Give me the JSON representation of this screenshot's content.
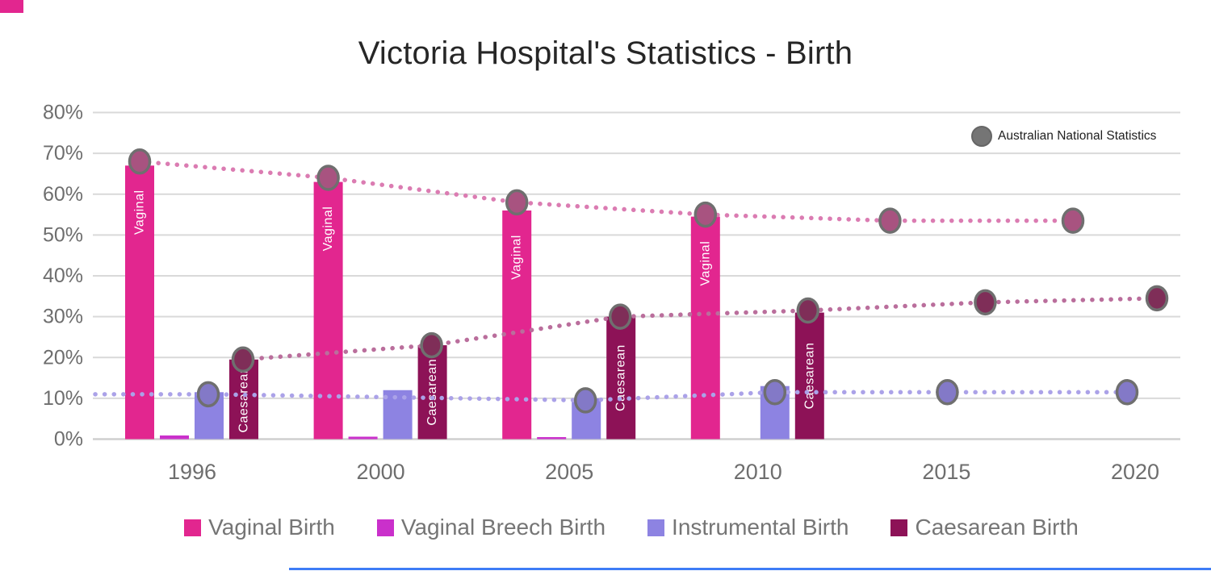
{
  "title": "Victoria Hospital's Statistics - Birth",
  "decorations": {
    "corner_swatch_color": "#E2268F",
    "bottom_accent_color": "#3E7CF6"
  },
  "chart_data": {
    "type": "bar",
    "subtype": "grouped-bars-with-national-scatter-trendlines",
    "title": "Victoria Hospital's Statistics - Birth",
    "xlabel": "",
    "ylabel": "",
    "ylim": [
      0,
      80
    ],
    "ytick_step": 10,
    "ytick_labels": [
      "0%",
      "10%",
      "20%",
      "30%",
      "40%",
      "50%",
      "60%",
      "70%",
      "80%"
    ],
    "grid": true,
    "legend_position": "bottom",
    "categories": [
      "1996",
      "2000",
      "2005",
      "2010",
      "2015",
      "2020"
    ],
    "bar_series": [
      {
        "name": "Vaginal Birth",
        "color": "#E2268F",
        "bar_label": "Vaginal",
        "values": [
          67,
          63,
          56,
          54.5,
          null,
          null
        ]
      },
      {
        "name": "Vaginal Breech Birth",
        "color": "#CA30CB",
        "bar_label": "",
        "values": [
          0.9,
          0.6,
          0.5,
          null,
          null,
          null
        ]
      },
      {
        "name": "Instrumental Birth",
        "color": "#8D83E2",
        "bar_label": "",
        "values": [
          11.5,
          12,
          10,
          13,
          null,
          null
        ]
      },
      {
        "name": "Caesarean Birth",
        "color": "#8D1257",
        "bar_label": "Caesarean",
        "values": [
          19.5,
          23,
          30,
          31,
          null,
          null
        ]
      }
    ],
    "national_series_label": "Australian National Statistics",
    "national_marker_color": "#757575",
    "national_series": [
      {
        "name": "Vaginal Birth - Australian National Statistics",
        "line_color": "#DB7CB2",
        "marker_color": "#A85380",
        "values": [
          68,
          64,
          58,
          55,
          53.5,
          53.5
        ],
        "marker_x_offsets": [
          -65,
          -65,
          -65,
          -65,
          -70,
          -77
        ],
        "lead_in": false
      },
      {
        "name": "Instrumental Birth - Australian National Statistics",
        "line_color": "#ABA2E8",
        "marker_color": "#8379C7",
        "values": [
          11,
          null,
          9.5,
          11.5,
          11.5,
          11.5
        ],
        "marker_x_offsets": [
          20,
          20,
          20,
          21,
          1,
          -10
        ],
        "lead_in": true
      },
      {
        "name": "Caesarean Birth - Australian National Statistics",
        "line_color": "#BA6E9C",
        "marker_color": "#7F2E58",
        "values": [
          19.5,
          23,
          30,
          31.5,
          33.5,
          34.5
        ],
        "marker_x_offsets": [
          63,
          63,
          63,
          62,
          48,
          27
        ],
        "lead_in": false
      }
    ]
  }
}
